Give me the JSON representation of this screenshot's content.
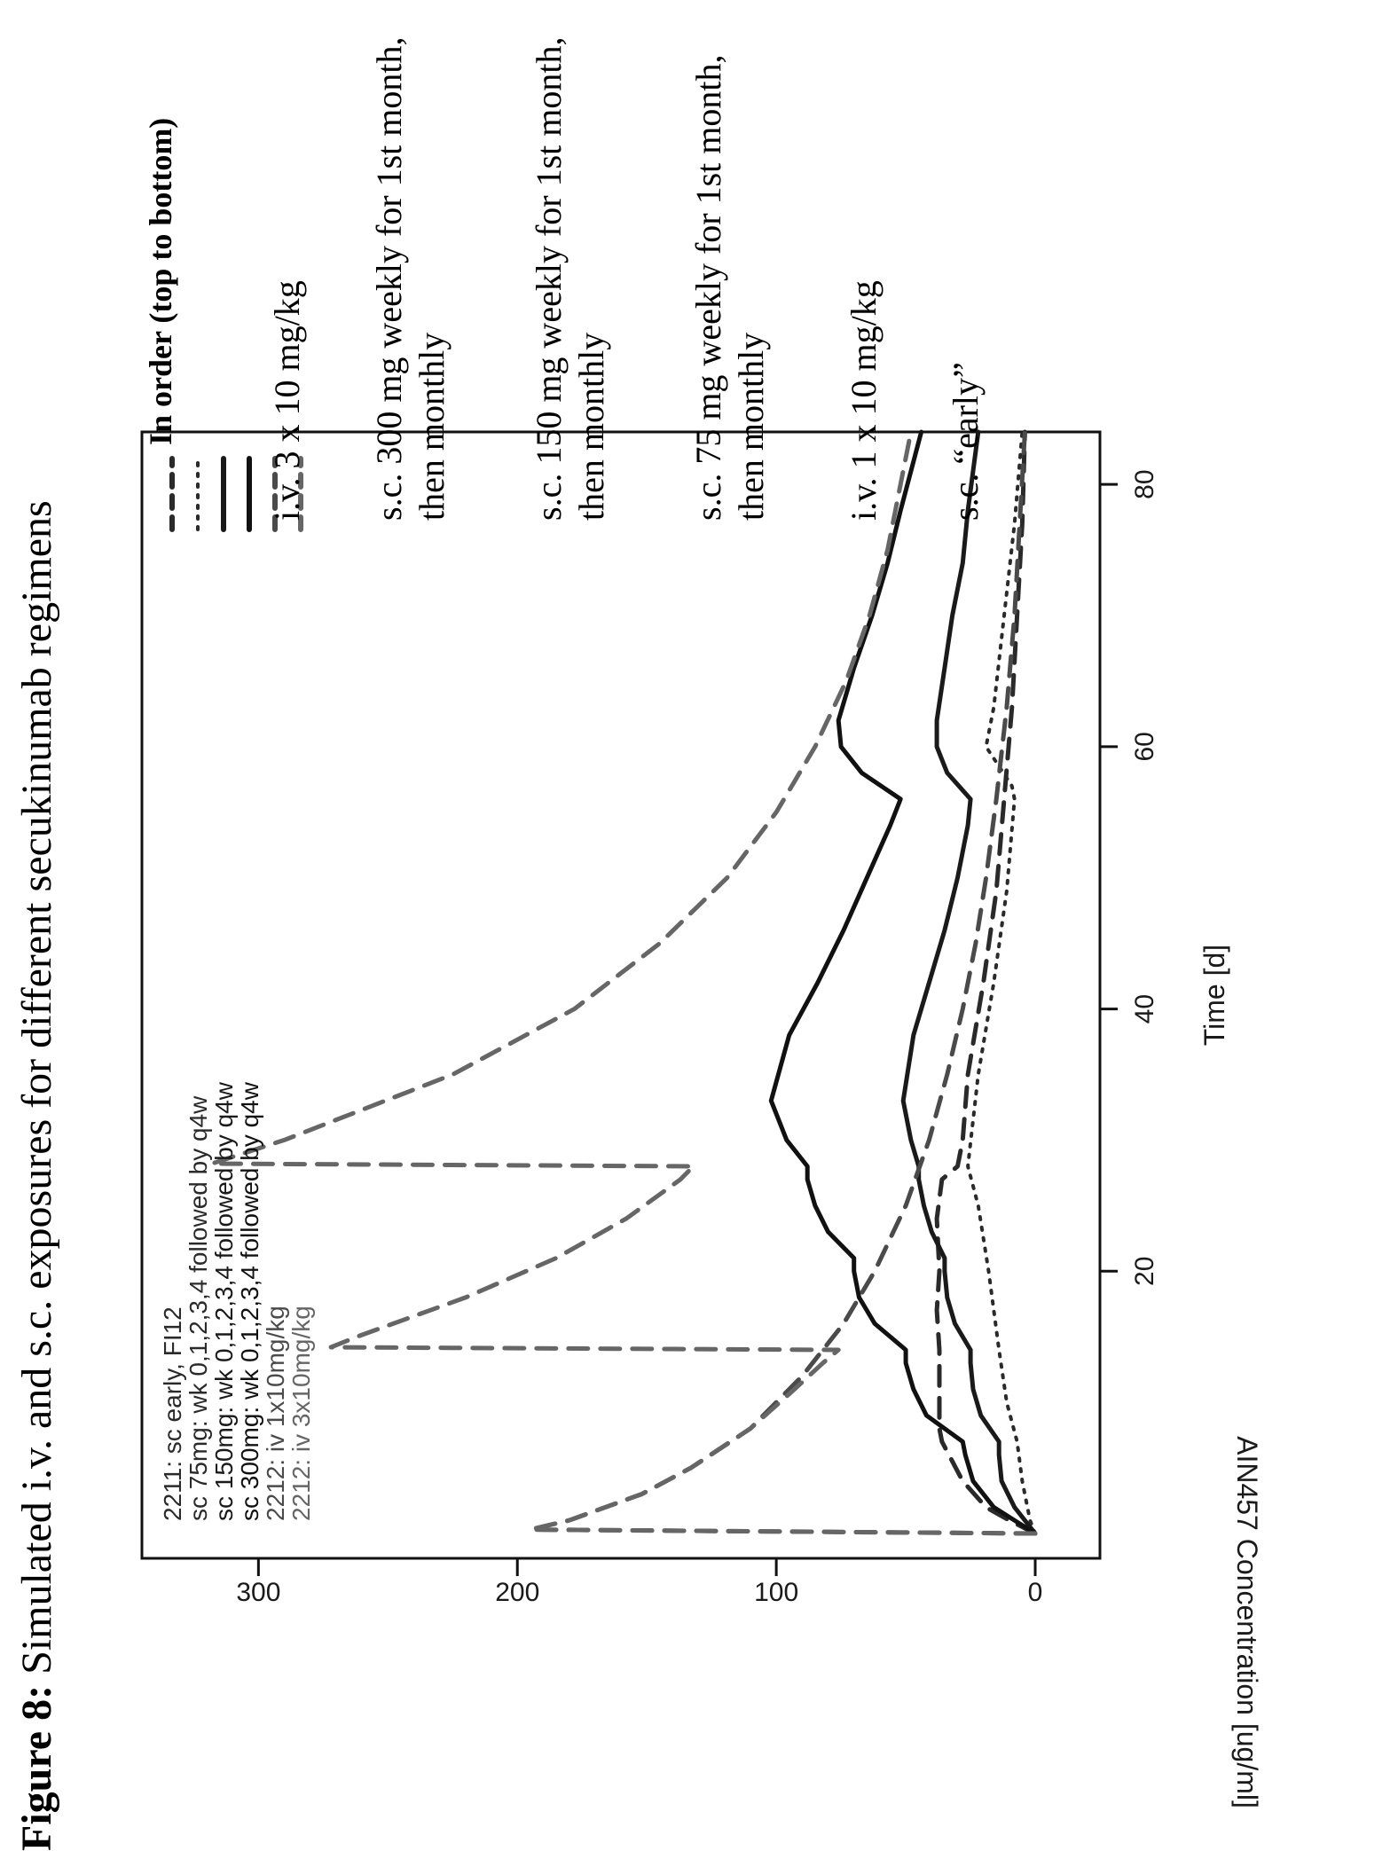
{
  "figure": {
    "label": "Figure 8:",
    "title": "Simulated i.v. and s.c. exposures for different secukinumab regimens"
  },
  "chart_data": {
    "type": "line",
    "xlabel": "Time [d]",
    "ylabel": "AIN457 Concentration [ug/ml]",
    "xlim": [
      0,
      84
    ],
    "ylim": [
      -25,
      345
    ],
    "xticks": [
      "20",
      "40",
      "60",
      "80"
    ],
    "yticks": [
      "0",
      "100",
      "200",
      "300"
    ],
    "legend_position": "top-left",
    "series": [
      {
        "name": "2211: sc early, FI12",
        "color": "#2a2a2a",
        "style": "dashed",
        "x": [
          0,
          1,
          2,
          4,
          7,
          8,
          10,
          13,
          14,
          17,
          20,
          24,
          27,
          28,
          30,
          35,
          42,
          49,
          56,
          63,
          70,
          77,
          84
        ],
        "y": [
          0,
          10,
          19,
          28,
          36,
          37,
          37,
          37,
          37,
          38,
          37,
          38,
          36,
          30,
          28,
          26,
          20,
          15,
          12,
          9,
          7,
          5,
          4
        ]
      },
      {
        "name": "sc 75mg: wk 0,1,2,3,4 followed by q4w",
        "color": "#2a2a2a",
        "style": "dotted",
        "x": [
          0,
          1,
          4,
          7,
          10,
          14,
          20,
          25,
          28,
          35,
          42,
          49,
          56,
          57,
          60,
          63,
          70,
          77,
          84
        ],
        "y": [
          0,
          2,
          5,
          7,
          11,
          14,
          18,
          22,
          26,
          22,
          16,
          11,
          8,
          9,
          19,
          16,
          12,
          8,
          5
        ]
      },
      {
        "name": "sc 150mg: wk 0,1,2,3,4 followed by q4w",
        "color": "#1a1a1a",
        "style": "solid",
        "x": [
          0,
          2,
          4,
          6,
          7,
          9,
          11,
          13,
          14,
          16,
          18,
          20,
          21,
          23,
          25,
          27,
          28,
          30,
          33,
          38,
          42,
          46,
          50,
          54,
          56,
          58,
          60,
          62,
          66,
          70,
          74,
          78,
          84
        ],
        "y": [
          0,
          8,
          13,
          14,
          14,
          21,
          24,
          25,
          25,
          31,
          34,
          35,
          35,
          40,
          43,
          45,
          45,
          48,
          51,
          47,
          41,
          35,
          30,
          26,
          25,
          34,
          38,
          38,
          35,
          32,
          28,
          26,
          22
        ]
      },
      {
        "name": "sc 300mg: wk 0,1,2,3,4 followed by q4w",
        "color": "#111111",
        "style": "solid",
        "x": [
          0,
          2,
          4,
          6,
          7,
          9,
          11,
          13,
          14,
          16,
          18,
          20,
          21,
          23,
          25,
          27,
          28,
          30,
          33,
          38,
          42,
          46,
          50,
          54,
          56,
          58,
          60,
          62,
          66,
          70,
          74,
          78,
          84
        ],
        "y": [
          0,
          16,
          24,
          27,
          28,
          42,
          47,
          50,
          50,
          62,
          68,
          70,
          70,
          80,
          85,
          88,
          88,
          96,
          102,
          95,
          84,
          74,
          65,
          56,
          52,
          67,
          75,
          76,
          70,
          63,
          57,
          52,
          44
        ]
      },
      {
        "name": "2212: iv 1x10mg/kg",
        "color": "#4a4a4a",
        "style": "dashed",
        "x": [
          0,
          0.3,
          1,
          3,
          5,
          8,
          12,
          16,
          20,
          25,
          30,
          35,
          40,
          45,
          50,
          56,
          63,
          70,
          77,
          84
        ],
        "y": [
          0,
          195,
          180,
          152,
          133,
          110,
          90,
          74,
          62,
          50,
          41,
          34,
          28,
          23,
          19,
          15,
          11,
          8,
          6,
          4
        ]
      },
      {
        "name": "2212: iv 3x10mg/kg",
        "color": "#666666",
        "style": "dashed",
        "x": [
          0,
          0.3,
          1,
          3,
          5,
          8,
          11,
          13,
          14,
          14.2,
          15,
          18,
          21,
          24,
          27,
          28,
          28.2,
          30,
          35,
          40,
          45,
          50,
          55,
          60,
          65,
          70,
          75,
          80,
          84
        ],
        "y": [
          0,
          195,
          180,
          152,
          133,
          110,
          93,
          82,
          76,
          272,
          262,
          220,
          185,
          158,
          137,
          132,
          318,
          290,
          225,
          178,
          145,
          119,
          100,
          85,
          73,
          64,
          57,
          52,
          48
        ]
      }
    ]
  },
  "order_panel": {
    "heading": "In order (top to bottom)",
    "items": [
      "i.v. 3 x 10 mg/kg",
      "s.c. 300 mg weekly for 1st month, then monthly",
      "s.c. 150 mg weekly for 1st month, then monthly",
      "s.c. 75 mg weekly for 1st month, then monthly",
      "i.v. 1 x 10 mg/kg",
      "s.c. “early”"
    ]
  }
}
